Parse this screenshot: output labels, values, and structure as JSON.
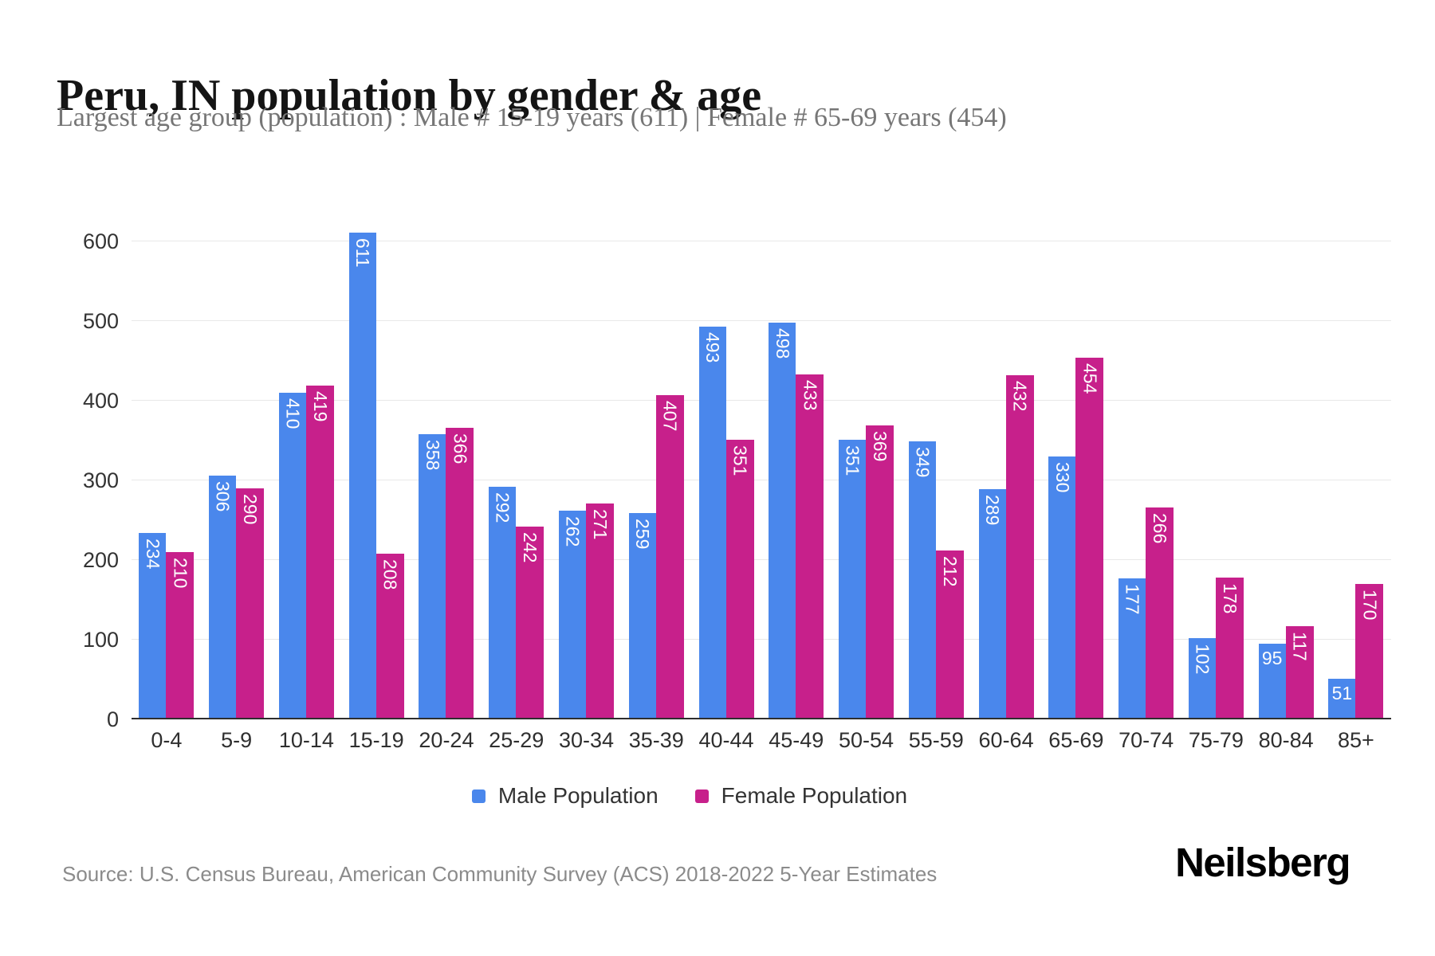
{
  "title": "Peru, IN population by gender & age",
  "subtitle": "Largest age group (population) : Male # 15-19 years (611) | Female # 65-69 years (454)",
  "source": "Source: U.S. Census Bureau, American Community Survey (ACS) 2018-2022 5-Year Estimates",
  "brand": "Neilsberg",
  "colors": {
    "male": "#4a87ec",
    "female": "#c7208b",
    "grid": "#e8e8e8",
    "axis_baseline": "#2e2e2e",
    "bar_label": "#fdfdfd",
    "tick_label": "#333333",
    "subtitle_text": "#767676",
    "source_text": "#8b8b8b"
  },
  "legend": [
    {
      "label": "Male Population",
      "color": "#4a87ec"
    },
    {
      "label": "Female Population",
      "color": "#c7208b"
    }
  ],
  "chart_data": {
    "type": "bar",
    "categories": [
      "0-4",
      "5-9",
      "10-14",
      "15-19",
      "20-24",
      "25-29",
      "30-34",
      "35-39",
      "40-44",
      "45-49",
      "50-54",
      "55-59",
      "60-64",
      "65-69",
      "70-74",
      "75-79",
      "80-84",
      "85+"
    ],
    "series": [
      {
        "name": "Male Population",
        "color": "#4a87ec",
        "values": [
          234,
          306,
          410,
          611,
          358,
          292,
          262,
          259,
          493,
          498,
          351,
          349,
          289,
          330,
          177,
          102,
          95,
          51
        ]
      },
      {
        "name": "Female Population",
        "color": "#c7208b",
        "values": [
          210,
          290,
          419,
          208,
          366,
          242,
          271,
          407,
          351,
          433,
          369,
          212,
          432,
          454,
          266,
          178,
          117,
          170
        ]
      }
    ],
    "title": "Peru, IN population by gender & age",
    "xlabel": "",
    "ylabel": "",
    "yticks": [
      0,
      100,
      200,
      300,
      400,
      500,
      600
    ],
    "ylim": [
      0,
      650
    ],
    "grid": true,
    "data_labels": "inside-top, rotated 90deg when 3+ digits",
    "legend_position": "bottom"
  }
}
